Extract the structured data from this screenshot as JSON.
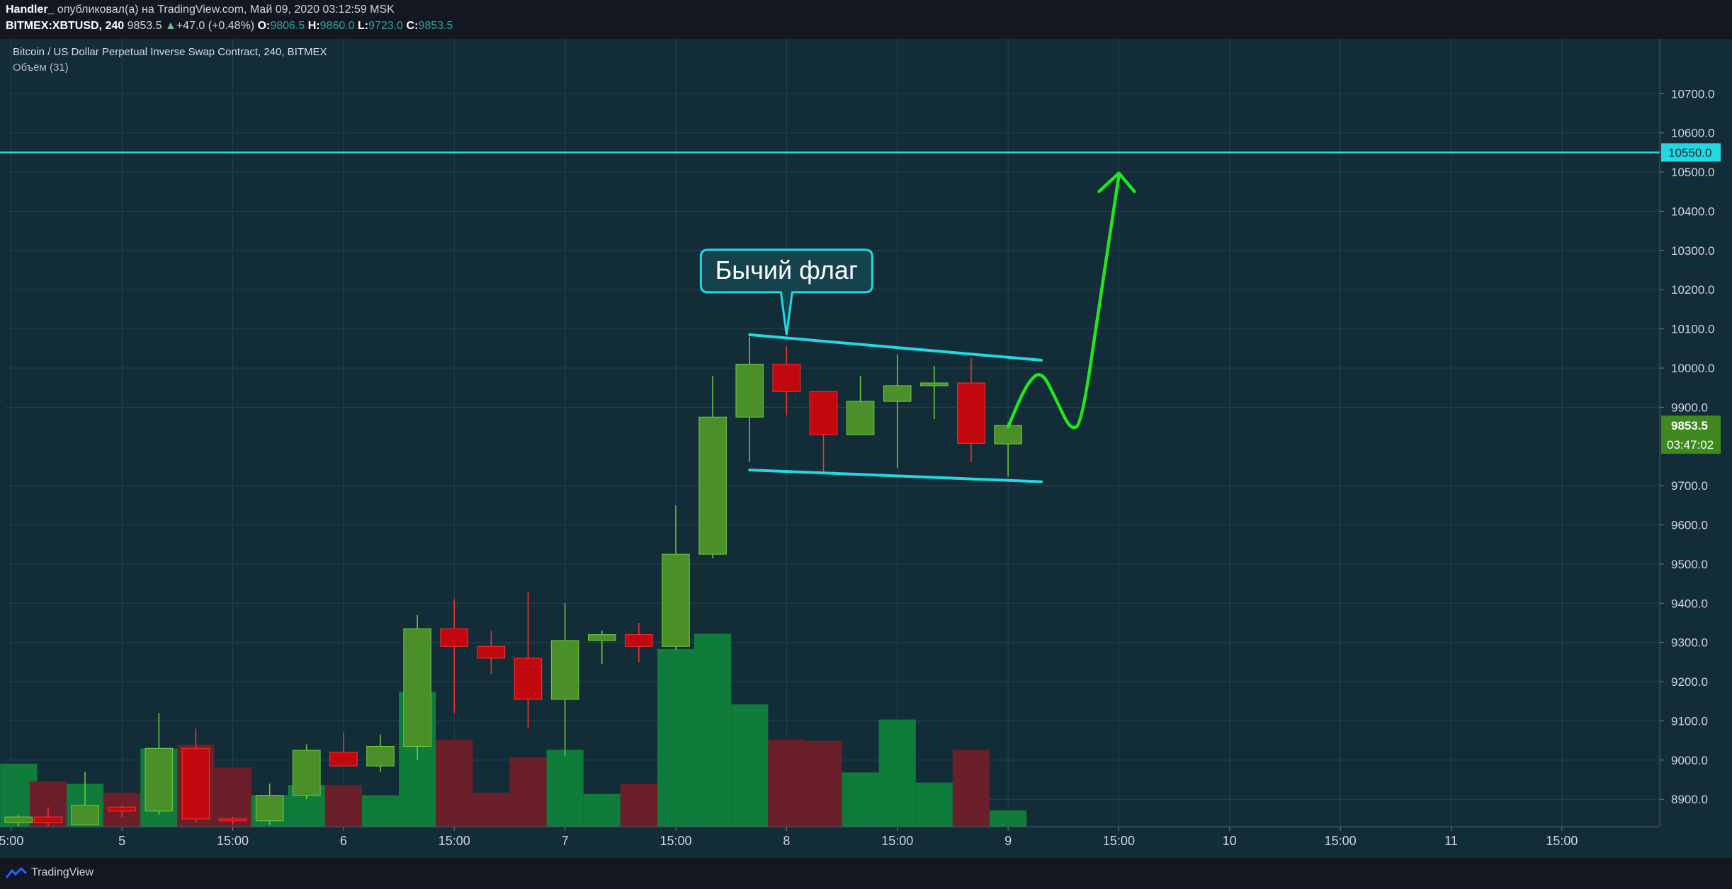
{
  "header": {
    "author": "Handler_",
    "published": "опубликовал(а) на TradingView.com, Май 09, 2020 03:12:59 MSK",
    "symbol": "BITMEX:XBTUSD, 240",
    "last": "9853.5",
    "change_arrow": "▲",
    "change": "+47.0 (+0.48%)",
    "open_label": "O:",
    "open": "9806.5",
    "high_label": "H:",
    "high": "9860.0",
    "low_label": "L:",
    "low": "9723.0",
    "close_label": "C:",
    "close": "9853.5"
  },
  "legend": {
    "title": "Bitcoin / US Dollar Perpetual Inverse Swap Contract, 240, BITMEX",
    "volume": "Объём (31)"
  },
  "annotation": {
    "text": "Бычий флаг"
  },
  "footer": {
    "brand": "TradingView",
    "brand_icon": "tradingview-logo-icon"
  },
  "colors": {
    "background": "#132d38",
    "up": "#4a8f2a",
    "up_border": "#6fcf3a",
    "up_bright": "#2fb82f",
    "down": "#c0080e",
    "down_border": "#ff3030",
    "vol_up": "#0f7c3c",
    "vol_down": "#6b1f2a",
    "cyan": "#23d7e3",
    "arrow": "#22e61c",
    "price_tag": "#3e8a1f",
    "level_tag": "#23d7e3"
  },
  "chart_data": {
    "type": "candlestick",
    "interval": "240",
    "y_axis": {
      "ylim": [
        8830,
        10780
      ],
      "ticks": [
        "10700.0",
        "10600.0",
        "10500.0",
        "10400.0",
        "10300.0",
        "10200.0",
        "10100.0",
        "10000.0",
        "9900.0",
        "9700.0",
        "9600.0",
        "9500.0",
        "9400.0",
        "9300.0",
        "9200.0",
        "9100.0",
        "9000.0",
        "8900.0"
      ]
    },
    "x_axis": {
      "labels": [
        {
          "text": "5:00",
          "slot": -1
        },
        {
          "text": "5",
          "slot": 2
        },
        {
          "text": "15:00",
          "slot": 5
        },
        {
          "text": "6",
          "slot": 8
        },
        {
          "text": "15:00",
          "slot": 11
        },
        {
          "text": "7",
          "slot": 14
        },
        {
          "text": "15:00",
          "slot": 17
        },
        {
          "text": "8",
          "slot": 20
        },
        {
          "text": "15:00",
          "slot": 23
        },
        {
          "text": "9",
          "slot": 26
        },
        {
          "text": "15:00",
          "slot": 29
        },
        {
          "text": "10",
          "slot": 32
        },
        {
          "text": "15:00",
          "slot": 35
        },
        {
          "text": "11",
          "slot": 38
        },
        {
          "text": "15:00",
          "slot": 41
        }
      ],
      "slot_range": [
        -1.15,
        43.65
      ]
    },
    "candles": [
      {
        "slot": -0.8,
        "o": 8840,
        "h": 8860,
        "l": 8830,
        "c": 8855,
        "vol": 5000
      },
      {
        "slot": 0,
        "o": 8855,
        "h": 8880,
        "l": 8830,
        "c": 8840,
        "vol": 3600
      },
      {
        "slot": 1,
        "o": 8835,
        "h": 8970,
        "l": 8835,
        "c": 8885,
        "vol": 3400
      },
      {
        "slot": 2,
        "o": 8880,
        "h": 8885,
        "l": 8855,
        "c": 8870,
        "vol": 2700
      },
      {
        "slot": 3,
        "o": 8870,
        "h": 9120,
        "l": 8860,
        "c": 9030,
        "vol": 6200
      },
      {
        "slot": 4,
        "o": 9030,
        "h": 9080,
        "l": 8840,
        "c": 8850,
        "vol": 6500
      },
      {
        "slot": 5,
        "o": 8850,
        "h": 8855,
        "l": 8835,
        "c": 8845,
        "vol": 4700
      },
      {
        "slot": 6,
        "o": 8845,
        "h": 8940,
        "l": 8835,
        "c": 8910,
        "vol": 2500
      },
      {
        "slot": 7,
        "o": 8910,
        "h": 9040,
        "l": 8900,
        "c": 9025,
        "vol": 3300
      },
      {
        "slot": 8,
        "o": 9020,
        "h": 9070,
        "l": 8985,
        "c": 8985,
        "vol": 3300
      },
      {
        "slot": 9,
        "o": 8985,
        "h": 9065,
        "l": 8970,
        "c": 9035,
        "vol": 2500
      },
      {
        "slot": 10,
        "o": 9035,
        "h": 9370,
        "l": 9000,
        "c": 9335,
        "vol": 10700
      },
      {
        "slot": 11,
        "o": 9335,
        "h": 9410,
        "l": 9120,
        "c": 9290,
        "vol": 6900
      },
      {
        "slot": 12,
        "o": 9290,
        "h": 9330,
        "l": 9220,
        "c": 9260,
        "vol": 2700
      },
      {
        "slot": 13,
        "o": 9260,
        "h": 9430,
        "l": 9080,
        "c": 9155,
        "vol": 5500
      },
      {
        "slot": 14,
        "o": 9155,
        "h": 9400,
        "l": 9010,
        "c": 9305,
        "vol": 6100
      },
      {
        "slot": 15,
        "o": 9305,
        "h": 9330,
        "l": 9245,
        "c": 9320,
        "vol": 2600
      },
      {
        "slot": 16,
        "o": 9320,
        "h": 9350,
        "l": 9250,
        "c": 9290,
        "vol": 3400
      },
      {
        "slot": 17,
        "o": 9290,
        "h": 9650,
        "l": 9280,
        "c": 9525,
        "vol": 14100
      },
      {
        "slot": 18,
        "o": 9525,
        "h": 9980,
        "l": 9515,
        "c": 9875,
        "vol": 15300
      },
      {
        "slot": 19,
        "o": 9875,
        "h": 10080,
        "l": 9760,
        "c": 10010,
        "vol": 9700
      },
      {
        "slot": 20,
        "o": 10010,
        "h": 10055,
        "l": 9880,
        "c": 9940,
        "vol": 6900
      },
      {
        "slot": 21,
        "o": 9940,
        "h": 9940,
        "l": 9735,
        "c": 9830,
        "vol": 6800
      },
      {
        "slot": 22,
        "o": 9830,
        "h": 9980,
        "l": 9830,
        "c": 9915,
        "vol": 4300
      },
      {
        "slot": 23,
        "o": 9915,
        "h": 10035,
        "l": 9745,
        "c": 9955,
        "vol": 8500
      },
      {
        "slot": 24,
        "o": 9955,
        "h": 10005,
        "l": 9870,
        "c": 9962,
        "vol": 3500
      },
      {
        "slot": 25,
        "o": 9962,
        "h": 10025,
        "l": 9760,
        "c": 9808,
        "vol": 6100
      },
      {
        "slot": 26,
        "o": 9806.5,
        "h": 9860,
        "l": 9723,
        "c": 9853.5,
        "vol": 1300
      }
    ],
    "volume_max": 16000,
    "horizontal_line": {
      "price": 10550,
      "label": "10550.0"
    },
    "last_price_label": "9853.5",
    "countdown": "03:47:02",
    "flag": {
      "upper": [
        {
          "slot": 19,
          "price": 10085
        },
        {
          "slot": 26.9,
          "price": 10020
        }
      ],
      "lower": [
        {
          "slot": 19,
          "price": 9740
        },
        {
          "slot": 26.9,
          "price": 9710
        }
      ],
      "callout_slot": 20,
      "callout_price": 10085
    },
    "forecast_path": [
      {
        "slot": 26.0,
        "price": 9850
      },
      {
        "slot": 26.5,
        "price": 9960
      },
      {
        "slot": 26.9,
        "price": 9995
      },
      {
        "slot": 27.3,
        "price": 9920
      },
      {
        "slot": 27.7,
        "price": 9840
      },
      {
        "slot": 28.0,
        "price": 9860
      },
      {
        "slot": 28.5,
        "price": 10180
      },
      {
        "slot": 29.0,
        "price": 10490
      }
    ]
  }
}
